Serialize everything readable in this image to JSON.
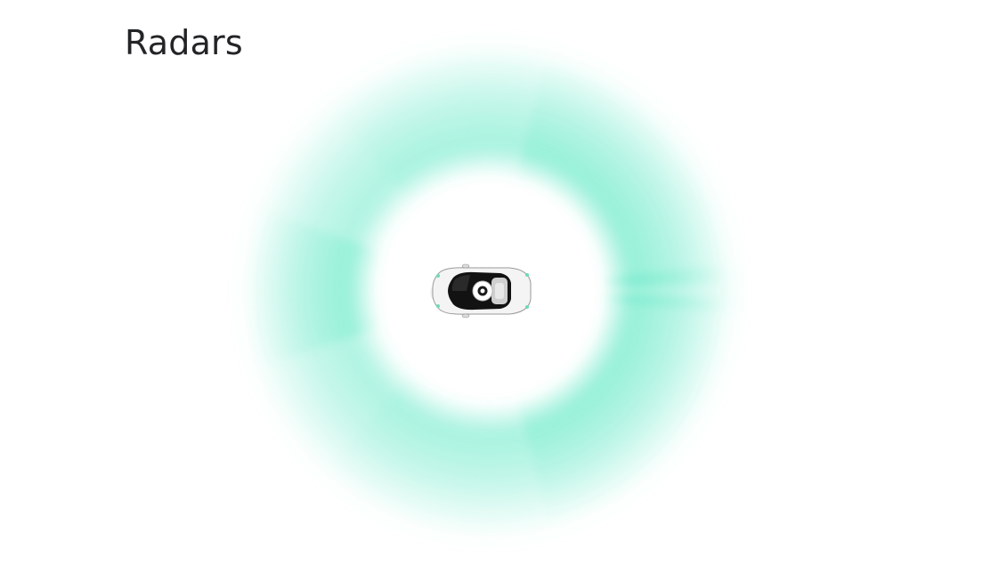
{
  "title": "Radars",
  "visual": {
    "radar_color": "#5fe8c4",
    "background": "#ffffff",
    "car_body_color": "#f4f4f4",
    "car_glass_color": "#111111",
    "icons": [
      "vehicle-top-view-icon",
      "lidar-dome-icon"
    ]
  }
}
